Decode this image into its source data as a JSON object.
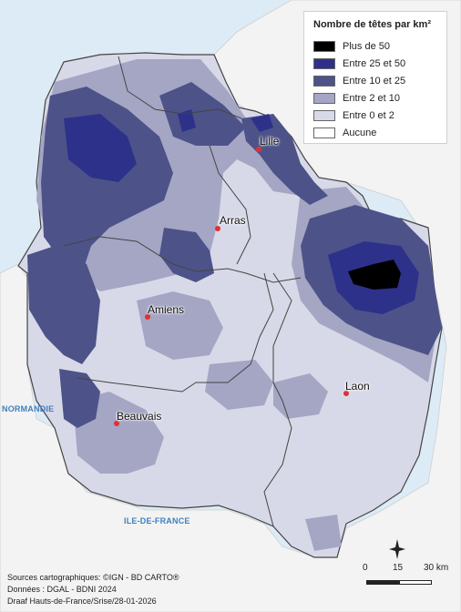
{
  "legend": {
    "title": "Nombre de têtes par km²",
    "items": [
      {
        "label": "Plus de 50",
        "color": "#000000"
      },
      {
        "label": "Entre 25 et 50",
        "color": "#2e318a"
      },
      {
        "label": "Entre 10 et 25",
        "color": "#4d5389"
      },
      {
        "label": "Entre 2 et 10",
        "color": "#a4a6c4"
      },
      {
        "label": "Entre 0 et 2",
        "color": "#d8d9e8"
      },
      {
        "label": "Aucune",
        "color": "#ffffff"
      }
    ]
  },
  "cities": {
    "lille": "Lille",
    "arras": "Arras",
    "amiens": "Amiens",
    "laon": "Laon",
    "beauvais": "Beauvais"
  },
  "regions": {
    "normandie": "NORMANDIE",
    "idf": "ILE-DE-FRANCE"
  },
  "sources": {
    "line1": "Sources cartographiques: ©IGN - BD CARTO®",
    "line2": "Données : DGAL - BDNI 2024",
    "line3": "Draaf Hauts-de-France/Srise/28-01-2026"
  },
  "scale": {
    "s0": "0",
    "s15": "15",
    "s30": "30 km"
  },
  "colors": {
    "sea": "#dcebf6",
    "outside": "#f4f4f4",
    "city": "#e03030"
  }
}
